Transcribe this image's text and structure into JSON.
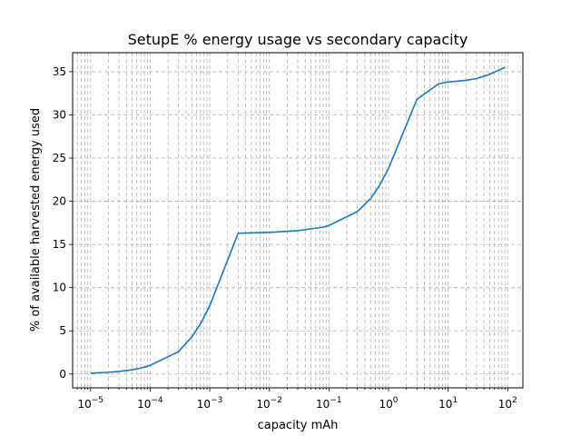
{
  "chart_data": {
    "type": "line",
    "title": "SetupE % energy usage vs secondary capacity",
    "xlabel": "capacity mAh",
    "ylabel": "% of available harvested energy used",
    "xscale": "log",
    "xlim": [
      5e-06,
      180
    ],
    "ylim": [
      -1.6,
      37.2
    ],
    "grid": "both, dashed, including minor x",
    "x_ticks": [
      {
        "value": 1e-05,
        "base": "10",
        "exp": "−5"
      },
      {
        "value": 0.0001,
        "base": "10",
        "exp": "−4"
      },
      {
        "value": 0.001,
        "base": "10",
        "exp": "−3"
      },
      {
        "value": 0.01,
        "base": "10",
        "exp": "−2"
      },
      {
        "value": 0.1,
        "base": "10",
        "exp": "−1"
      },
      {
        "value": 1,
        "base": "10",
        "exp": "0"
      },
      {
        "value": 10,
        "base": "10",
        "exp": "1"
      },
      {
        "value": 100,
        "base": "10",
        "exp": "2"
      }
    ],
    "y_ticks": [
      0,
      5,
      10,
      15,
      20,
      25,
      30,
      35
    ],
    "series": [
      {
        "color": "#1f77b4",
        "x": [
          1e-05,
          2e-05,
          3e-05,
          4e-05,
          5e-05,
          6e-05,
          7e-05,
          8e-05,
          0.0001,
          0.0003,
          0.0005,
          0.0007,
          0.001,
          0.003,
          0.01,
          0.03,
          0.05,
          0.08,
          0.1,
          0.3,
          0.5,
          0.7,
          1,
          3,
          5,
          7,
          10,
          20,
          30,
          50,
          90
        ],
        "y": [
          0.1,
          0.2,
          0.3,
          0.4,
          0.5,
          0.6,
          0.7,
          0.8,
          1.0,
          2.6,
          4.3,
          5.8,
          7.9,
          16.3,
          16.4,
          16.6,
          16.8,
          17.0,
          17.2,
          18.8,
          20.3,
          21.8,
          23.8,
          31.8,
          32.9,
          33.6,
          33.8,
          34.0,
          34.2,
          34.7,
          35.5
        ]
      }
    ]
  }
}
